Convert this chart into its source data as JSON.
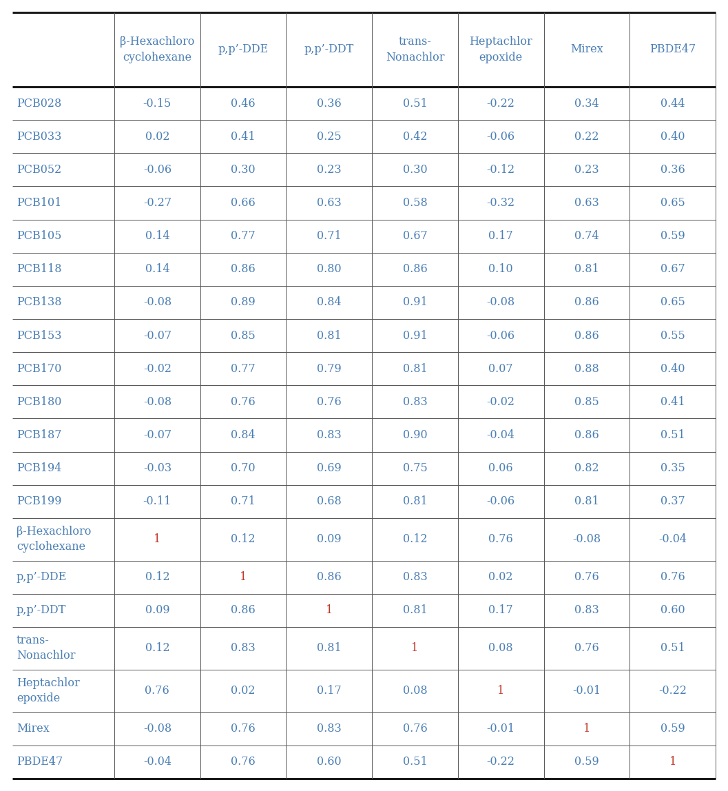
{
  "col_headers": [
    "β-Hexachloro\ncyclohexane",
    "p,p’-DDE",
    "p,p’-DDT",
    "trans-\nNonachlor",
    "Heptachlor\nepoxide",
    "Mirex",
    "PBDE47"
  ],
  "row_headers": [
    "PCB028",
    "PCB033",
    "PCB052",
    "PCB101",
    "PCB105",
    "PCB118",
    "PCB138",
    "PCB153",
    "PCB170",
    "PCB180",
    "PCB187",
    "PCB194",
    "PCB199",
    "β-Hexachloro\ncyclohexane",
    "p,p’-DDE",
    "p,p’-DDT",
    "trans-\nNonachlor",
    "Heptachlor\nepoxide",
    "Mirex",
    "PBDE47"
  ],
  "row_header_lines": [
    1,
    1,
    1,
    1,
    1,
    1,
    1,
    1,
    1,
    1,
    1,
    1,
    1,
    2,
    1,
    1,
    2,
    2,
    1,
    1
  ],
  "data": [
    [
      -0.15,
      0.46,
      0.36,
      0.51,
      -0.22,
      0.34,
      0.44
    ],
    [
      0.02,
      0.41,
      0.25,
      0.42,
      -0.06,
      0.22,
      0.4
    ],
    [
      -0.06,
      0.3,
      0.23,
      0.3,
      -0.12,
      0.23,
      0.36
    ],
    [
      -0.27,
      0.66,
      0.63,
      0.58,
      -0.32,
      0.63,
      0.65
    ],
    [
      0.14,
      0.77,
      0.71,
      0.67,
      0.17,
      0.74,
      0.59
    ],
    [
      0.14,
      0.86,
      0.8,
      0.86,
      0.1,
      0.81,
      0.67
    ],
    [
      -0.08,
      0.89,
      0.84,
      0.91,
      -0.08,
      0.86,
      0.65
    ],
    [
      -0.07,
      0.85,
      0.81,
      0.91,
      -0.06,
      0.86,
      0.55
    ],
    [
      -0.02,
      0.77,
      0.79,
      0.81,
      0.07,
      0.88,
      0.4
    ],
    [
      -0.08,
      0.76,
      0.76,
      0.83,
      -0.02,
      0.85,
      0.41
    ],
    [
      -0.07,
      0.84,
      0.83,
      0.9,
      -0.04,
      0.86,
      0.51
    ],
    [
      -0.03,
      0.7,
      0.69,
      0.75,
      0.06,
      0.82,
      0.35
    ],
    [
      -0.11,
      0.71,
      0.68,
      0.81,
      -0.06,
      0.81,
      0.37
    ],
    [
      1,
      0.12,
      0.09,
      0.12,
      0.76,
      -0.08,
      -0.04
    ],
    [
      0.12,
      1,
      0.86,
      0.83,
      0.02,
      0.76,
      0.76
    ],
    [
      0.09,
      0.86,
      1,
      0.81,
      0.17,
      0.83,
      0.6
    ],
    [
      0.12,
      0.83,
      0.81,
      1,
      0.08,
      0.76,
      0.51
    ],
    [
      0.76,
      0.02,
      0.17,
      0.08,
      1,
      -0.01,
      -0.22
    ],
    [
      -0.08,
      0.76,
      0.83,
      0.76,
      -0.01,
      1,
      0.59
    ],
    [
      -0.04,
      0.76,
      0.6,
      0.51,
      -0.22,
      0.59,
      1
    ]
  ],
  "text_color_data": "#4a7fb5",
  "text_color_row": "#4a7fb5",
  "text_color_col": "#4a7fb5",
  "diagonal_color": "#c0392b",
  "background_color": "#ffffff",
  "line_color_thick": "#1a1a1a",
  "line_color_thin": "#555555",
  "font_size_data": 11.5,
  "font_size_header": 11.5,
  "font_size_row": 11.5,
  "fig_width": 10.57,
  "fig_height": 11.48,
  "dpi": 100
}
